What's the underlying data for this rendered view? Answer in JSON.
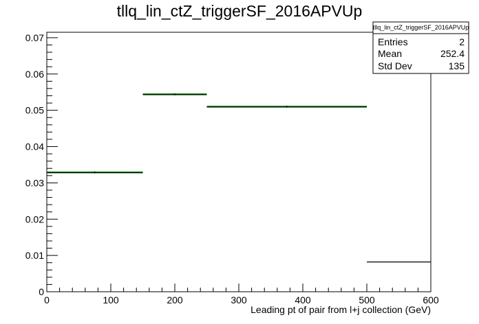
{
  "chart_data": {
    "type": "histogram",
    "title": "tllq_lin_ctZ_triggerSF_2016APVUp",
    "xlabel": "Leading pt of pair from l+j collection (GeV)",
    "ylabel": "",
    "xlim": [
      0,
      600
    ],
    "ylim": [
      0,
      0.0715
    ],
    "x_ticks": [
      0,
      100,
      200,
      300,
      400,
      500,
      600
    ],
    "y_ticks": [
      0,
      0.01,
      0.02,
      0.03,
      0.04,
      0.05,
      0.06,
      0.07
    ],
    "grid": false,
    "bins": [
      {
        "low": 0,
        "high": 150,
        "value": 0.0329
      },
      {
        "low": 150,
        "high": 250,
        "value": 0.0544
      },
      {
        "low": 250,
        "high": 500,
        "value": 0.051
      },
      {
        "low": 500,
        "high": 600,
        "value": 0.0082
      }
    ],
    "colors": {
      "fill_line": "#0a7a0a",
      "error_line": "#000000",
      "frame": "#000000"
    }
  },
  "stats_box": {
    "title": "tllq_lin_ctZ_triggerSF_2016APVUp",
    "rows": [
      {
        "label": "Entries",
        "value": "2"
      },
      {
        "label": "Mean",
        "value": "252.4"
      },
      {
        "label": "Std Dev",
        "value": "135"
      }
    ]
  }
}
